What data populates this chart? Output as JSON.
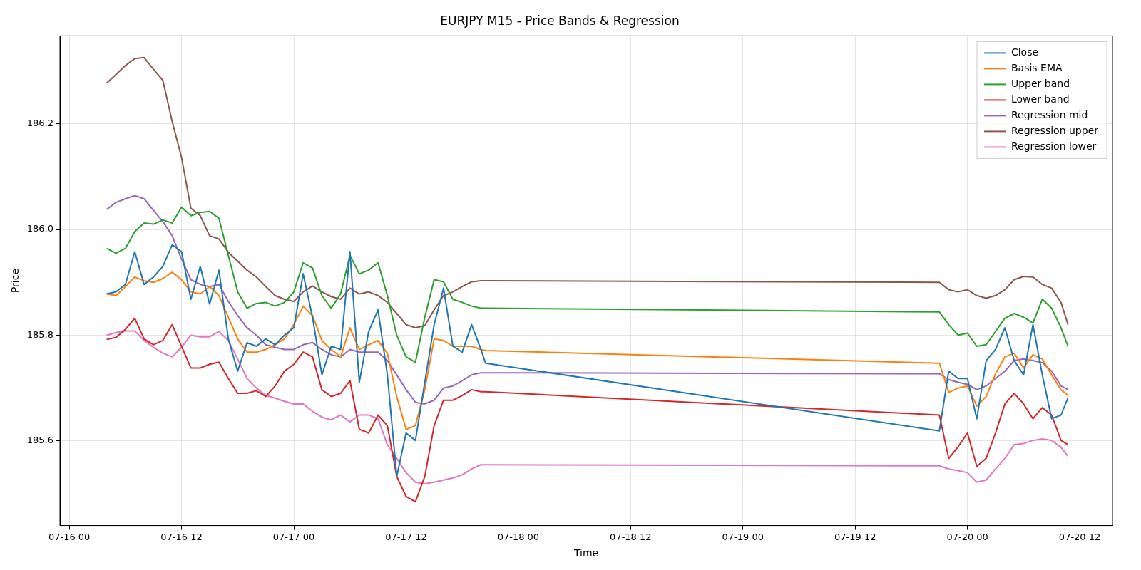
{
  "chart_data": {
    "type": "line",
    "title": "EURJPY M15 - Price Bands & Regression",
    "xlabel": "Time",
    "ylabel": "Price",
    "x": [
      "--07-16T04:00",
      "--07-16T05:00",
      "--07-16T06:00",
      "--07-16T07:00",
      "--07-16T08:00",
      "--07-16T09:00",
      "--07-16T10:00",
      "--07-16T11:00",
      "--07-16T12:00",
      "--07-16T13:00",
      "--07-16T14:00",
      "--07-16T15:00",
      "--07-16T16:00",
      "--07-16T17:00",
      "--07-16T18:00",
      "--07-16T19:00",
      "--07-16T20:00",
      "--07-16T21:00",
      "--07-16T22:00",
      "--07-16T23:00",
      "--07-17T00:00",
      "--07-17T01:00",
      "--07-17T02:00",
      "--07-17T03:00",
      "--07-17T04:00",
      "--07-17T05:00",
      "--07-17T06:00",
      "--07-17T07:00",
      "--07-17T08:00",
      "--07-17T09:00",
      "--07-17T10:00",
      "--07-17T11:00",
      "--07-17T12:00",
      "--07-17T13:00",
      "--07-17T14:00",
      "--07-17T15:00",
      "--07-17T16:00",
      "--07-17T17:00",
      "--07-17T18:00",
      "--07-17T19:00",
      "--07-17T20:00",
      "--07-17T20:30",
      "--07-19T21:00",
      "--07-19T22:00",
      "--07-19T23:00",
      "--07-20T00:00",
      "--07-20T01:00",
      "--07-20T02:00",
      "--07-20T03:00",
      "--07-20T04:00",
      "--07-20T05:00",
      "--07-20T06:00",
      "--07-20T07:00",
      "--07-20T08:00",
      "--07-20T09:00",
      "--07-20T10:00",
      "--07-20T10:45"
    ],
    "series": [
      {
        "name": "Close",
        "color": "#1f77b4",
        "values": [
          185.878,
          185.882,
          185.896,
          185.958,
          185.896,
          185.91,
          185.93,
          185.971,
          185.958,
          185.868,
          185.93,
          185.859,
          185.923,
          185.793,
          185.732,
          185.786,
          185.779,
          185.793,
          185.782,
          185.8,
          185.814,
          185.916,
          185.834,
          185.725,
          185.779,
          185.773,
          185.958,
          185.711,
          185.807,
          185.848,
          185.725,
          185.533,
          185.615,
          185.601,
          185.711,
          185.82,
          185.889,
          185.779,
          185.768,
          185.82,
          185.773,
          185.747,
          185.619,
          185.732,
          185.718,
          185.718,
          185.642,
          185.752,
          185.773,
          185.814,
          185.752,
          185.725,
          185.82,
          185.725,
          185.642,
          185.649,
          185.682
        ]
      },
      {
        "name": "Basis EMA",
        "color": "#ff7f0e",
        "values": [
          185.878,
          185.875,
          185.892,
          185.91,
          185.903,
          185.9,
          185.907,
          185.919,
          185.905,
          185.882,
          185.878,
          185.892,
          185.875,
          185.834,
          185.793,
          185.768,
          185.768,
          185.773,
          185.782,
          185.793,
          185.82,
          185.855,
          185.837,
          185.79,
          185.773,
          185.759,
          185.814,
          185.773,
          185.782,
          185.79,
          185.766,
          185.684,
          185.622,
          185.629,
          185.697,
          185.793,
          185.79,
          185.779,
          185.779,
          185.779,
          185.773,
          185.771,
          185.747,
          185.692,
          185.7,
          185.704,
          185.666,
          185.684,
          185.727,
          185.759,
          185.766,
          185.738,
          185.763,
          185.755,
          185.725,
          185.697,
          185.686
        ]
      },
      {
        "name": "Upper band",
        "color": "#2ca02c",
        "values": [
          185.964,
          185.955,
          185.964,
          185.996,
          186.012,
          186.01,
          186.018,
          186.012,
          186.042,
          186.026,
          186.032,
          186.034,
          186.021,
          185.951,
          185.882,
          185.851,
          185.86,
          185.862,
          185.855,
          185.862,
          185.882,
          185.937,
          185.927,
          185.875,
          185.851,
          185.878,
          185.951,
          185.916,
          185.923,
          185.937,
          185.875,
          185.8,
          185.759,
          185.749,
          185.834,
          185.905,
          185.901,
          185.868,
          185.862,
          185.855,
          185.851,
          185.851,
          185.844,
          185.82,
          185.8,
          185.804,
          185.779,
          185.782,
          185.807,
          185.832,
          185.841,
          185.834,
          185.823,
          185.868,
          185.851,
          185.814,
          185.779
        ]
      },
      {
        "name": "Lower band",
        "color": "#d62728",
        "values": [
          185.792,
          185.796,
          185.811,
          185.832,
          185.793,
          185.782,
          185.79,
          185.82,
          185.779,
          185.738,
          185.738,
          185.745,
          185.749,
          185.718,
          185.69,
          185.69,
          185.695,
          185.684,
          185.704,
          185.732,
          185.745,
          185.768,
          185.759,
          185.697,
          185.684,
          185.69,
          185.714,
          185.622,
          185.615,
          185.649,
          185.629,
          185.533,
          185.495,
          185.485,
          185.533,
          185.629,
          185.677,
          185.677,
          185.686,
          185.697,
          185.693,
          185.693,
          185.649,
          185.567,
          185.589,
          185.615,
          185.552,
          185.567,
          185.615,
          185.67,
          185.69,
          185.67,
          185.642,
          185.663,
          185.649,
          185.601,
          185.593
        ]
      },
      {
        "name": "Regression mid",
        "color": "#9467bd",
        "values": [
          186.038,
          186.051,
          186.058,
          186.064,
          186.058,
          186.036,
          186.015,
          185.988,
          185.944,
          185.905,
          185.896,
          185.892,
          185.896,
          185.864,
          185.837,
          185.814,
          185.8,
          185.782,
          185.777,
          185.773,
          185.773,
          185.782,
          185.786,
          185.773,
          185.763,
          185.759,
          185.773,
          185.768,
          185.768,
          185.768,
          185.752,
          185.725,
          185.697,
          185.673,
          185.67,
          185.677,
          185.7,
          185.704,
          185.714,
          185.725,
          185.729,
          185.729,
          185.727,
          185.716,
          185.711,
          185.707,
          185.697,
          185.704,
          185.718,
          185.732,
          185.752,
          185.755,
          185.752,
          185.748,
          185.732,
          185.704,
          185.697
        ]
      },
      {
        "name": "Regression upper",
        "color": "#8c564b",
        "values": [
          186.277,
          186.293,
          186.31,
          186.323,
          186.325,
          186.303,
          186.282,
          186.204,
          186.136,
          186.04,
          186.026,
          185.988,
          185.982,
          185.957,
          185.94,
          185.923,
          185.91,
          185.892,
          185.875,
          185.868,
          185.864,
          185.882,
          185.893,
          185.882,
          185.873,
          185.868,
          185.889,
          185.878,
          185.882,
          185.875,
          185.862,
          185.841,
          185.82,
          185.814,
          185.818,
          185.848,
          185.875,
          185.882,
          185.892,
          185.901,
          185.903,
          185.903,
          185.9,
          185.886,
          185.882,
          185.886,
          185.875,
          185.87,
          185.875,
          185.886,
          185.905,
          185.911,
          185.91,
          185.896,
          185.889,
          185.862,
          185.82
        ]
      },
      {
        "name": "Regression lower",
        "color": "#e377c2",
        "values": [
          185.8,
          185.805,
          185.808,
          185.808,
          185.79,
          185.777,
          185.766,
          185.759,
          185.777,
          185.8,
          185.797,
          185.797,
          185.807,
          185.79,
          185.755,
          185.718,
          185.7,
          185.686,
          185.681,
          185.675,
          185.67,
          185.67,
          185.656,
          185.645,
          185.64,
          185.649,
          185.636,
          185.649,
          185.649,
          185.642,
          185.593,
          185.567,
          185.54,
          185.522,
          185.519,
          185.522,
          185.526,
          185.53,
          185.536,
          185.547,
          185.555,
          185.555,
          185.553,
          185.547,
          185.544,
          185.54,
          185.522,
          185.526,
          185.547,
          185.567,
          185.593,
          185.595,
          185.601,
          185.604,
          185.601,
          185.588,
          185.571
        ]
      }
    ],
    "xlim": [
      "--07-15T23:00",
      "--07-20T15:30"
    ],
    "xticks": [
      {
        "value": "--07-16T00:00",
        "label": "07-16 00"
      },
      {
        "value": "--07-16T12:00",
        "label": "07-16 12"
      },
      {
        "value": "--07-17T00:00",
        "label": "07-17 00"
      },
      {
        "value": "--07-17T12:00",
        "label": "07-17 12"
      },
      {
        "value": "--07-18T00:00",
        "label": "07-18 00"
      },
      {
        "value": "--07-18T12:00",
        "label": "07-18 12"
      },
      {
        "value": "--07-19T00:00",
        "label": "07-19 00"
      },
      {
        "value": "--07-19T12:00",
        "label": "07-19 12"
      },
      {
        "value": "--07-20T00:00",
        "label": "07-20 00"
      },
      {
        "value": "--07-20T12:00",
        "label": "07-20 12"
      }
    ],
    "ylim": [
      185.44,
      186.366
    ],
    "yticks": [
      185.6,
      185.8,
      {
        "value": 186,
        "label": "186.0"
      },
      186.2
    ],
    "grid": true,
    "legend": "top right",
    "marker": "none",
    "line_style": "solid"
  }
}
